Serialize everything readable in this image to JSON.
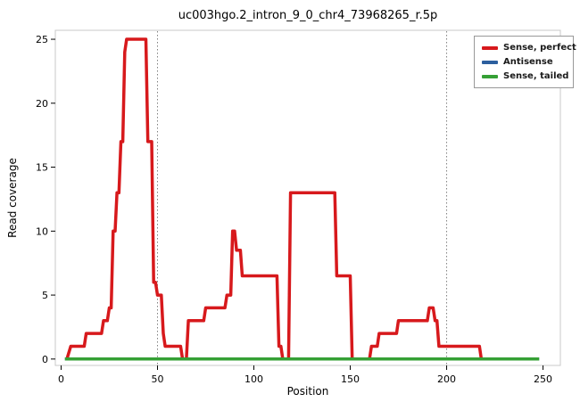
{
  "title": "uc003hgo.2_intron_9_0_chr4_73968265_r.5p",
  "axes": {
    "xlabel": "Position",
    "ylabel": "Read coverage"
  },
  "legend": {
    "items": [
      {
        "label": "Sense, perfect",
        "color": "#d7191c"
      },
      {
        "label": "Antisense",
        "color": "#2c5f9e"
      },
      {
        "label": "Sense, tailed",
        "color": "#35a035"
      }
    ]
  },
  "chart_data": {
    "type": "line",
    "title": "uc003hgo.2_intron_9_0_chr4_73968265_r.5p",
    "xlabel": "Position",
    "ylabel": "Read coverage",
    "xlim": [
      0,
      250
    ],
    "ylim": [
      0,
      25
    ],
    "x_ticks": [
      0,
      50,
      100,
      150,
      200,
      250
    ],
    "y_ticks": [
      0,
      5,
      10,
      15,
      20,
      25
    ],
    "vlines": [
      50,
      200
    ],
    "grid": false,
    "legend_position": "top-right",
    "series": [
      {
        "name": "Antisense",
        "color": "#2c5f9e",
        "points": [
          [
            2,
            0
          ],
          [
            248,
            0
          ]
        ]
      },
      {
        "name": "Sense, perfect",
        "color": "#d7191c",
        "points": [
          [
            3,
            0
          ],
          [
            5,
            1
          ],
          [
            12,
            1
          ],
          [
            13,
            2
          ],
          [
            21,
            2
          ],
          [
            22,
            3
          ],
          [
            24,
            3
          ],
          [
            25,
            4
          ],
          [
            26,
            4
          ],
          [
            27,
            10
          ],
          [
            28,
            10
          ],
          [
            29,
            13
          ],
          [
            30,
            13
          ],
          [
            31,
            17
          ],
          [
            32,
            17
          ],
          [
            33,
            24
          ],
          [
            34,
            25
          ],
          [
            44,
            25
          ],
          [
            45,
            17
          ],
          [
            47,
            17
          ],
          [
            48,
            6
          ],
          [
            49,
            6
          ],
          [
            50,
            5
          ],
          [
            52,
            5
          ],
          [
            53,
            2
          ],
          [
            54,
            1
          ],
          [
            62,
            1
          ],
          [
            63,
            0
          ],
          [
            65,
            0
          ],
          [
            66,
            3
          ],
          [
            74,
            3
          ],
          [
            75,
            4
          ],
          [
            85,
            4
          ],
          [
            86,
            5
          ],
          [
            88,
            5
          ],
          [
            89,
            10
          ],
          [
            90,
            10
          ],
          [
            91,
            8.5
          ],
          [
            93,
            8.5
          ],
          [
            94,
            6.5
          ],
          [
            112,
            6.5
          ],
          [
            113,
            1
          ],
          [
            114,
            1
          ],
          [
            115,
            0
          ],
          [
            118,
            0
          ],
          [
            119,
            13
          ],
          [
            142,
            13
          ],
          [
            143,
            6.5
          ],
          [
            150,
            6.5
          ],
          [
            151,
            0
          ],
          [
            160,
            0
          ],
          [
            161,
            1
          ],
          [
            164,
            1
          ],
          [
            165,
            2
          ],
          [
            174,
            2
          ],
          [
            175,
            3
          ],
          [
            190,
            3
          ],
          [
            191,
            4
          ],
          [
            193,
            4
          ],
          [
            194,
            3
          ],
          [
            195,
            3
          ],
          [
            196,
            1
          ],
          [
            217,
            1
          ],
          [
            218,
            0
          ]
        ]
      },
      {
        "name": "Sense, tailed",
        "color": "#35a035",
        "points": [
          [
            2,
            0
          ],
          [
            248,
            0
          ]
        ]
      }
    ]
  }
}
